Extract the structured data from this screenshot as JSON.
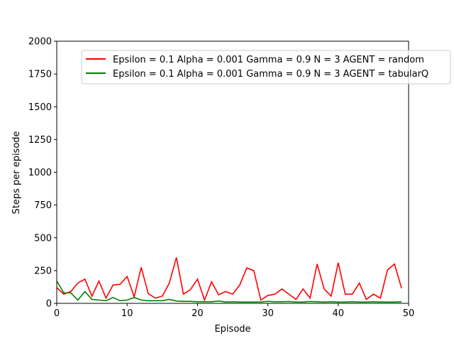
{
  "chart_data": {
    "type": "line",
    "title": "",
    "xlabel": "Episode",
    "ylabel": "Steps per episode",
    "xlim": [
      0,
      50
    ],
    "ylim": [
      0,
      2000
    ],
    "xticks": [
      0,
      10,
      20,
      30,
      40,
      50
    ],
    "yticks": [
      0,
      250,
      500,
      750,
      1000,
      1250,
      1500,
      1750,
      2000
    ],
    "grid": false,
    "legend_position": "top-right",
    "x": [
      0,
      1,
      2,
      3,
      4,
      5,
      6,
      7,
      8,
      9,
      10,
      11,
      12,
      13,
      14,
      15,
      16,
      17,
      18,
      19,
      20,
      21,
      22,
      23,
      24,
      25,
      26,
      27,
      28,
      29,
      30,
      31,
      32,
      33,
      34,
      35,
      36,
      37,
      38,
      39,
      40,
      41,
      42,
      43,
      44,
      45,
      46,
      47,
      48,
      49
    ],
    "series": [
      {
        "name": "Epsilon = 0.1 Alpha = 0.001 Gamma = 0.9 N = 3 AGENT = random",
        "color": "#ff0000",
        "values": [
          120,
          70,
          90,
          155,
          185,
          55,
          170,
          40,
          140,
          145,
          205,
          50,
          275,
          75,
          40,
          55,
          155,
          350,
          70,
          105,
          185,
          25,
          165,
          65,
          90,
          70,
          140,
          270,
          250,
          25,
          60,
          70,
          110,
          70,
          30,
          110,
          40,
          300,
          110,
          55,
          310,
          70,
          70,
          155,
          30,
          70,
          40,
          255,
          300,
          115
        ]
      },
      {
        "name": "Epsilon = 0.1 Alpha = 0.001 Gamma = 0.9 N = 3 AGENT = tabularQ",
        "color": "#008000",
        "values": [
          170,
          80,
          80,
          25,
          90,
          30,
          25,
          20,
          45,
          20,
          25,
          45,
          25,
          20,
          20,
          20,
          30,
          18,
          15,
          15,
          12,
          12,
          12,
          18,
          10,
          12,
          10,
          10,
          10,
          10,
          15,
          12,
          12,
          14,
          10,
          10,
          14,
          12,
          10,
          12,
          10,
          10,
          12,
          10,
          10,
          12,
          10,
          10,
          10,
          12
        ]
      }
    ]
  }
}
